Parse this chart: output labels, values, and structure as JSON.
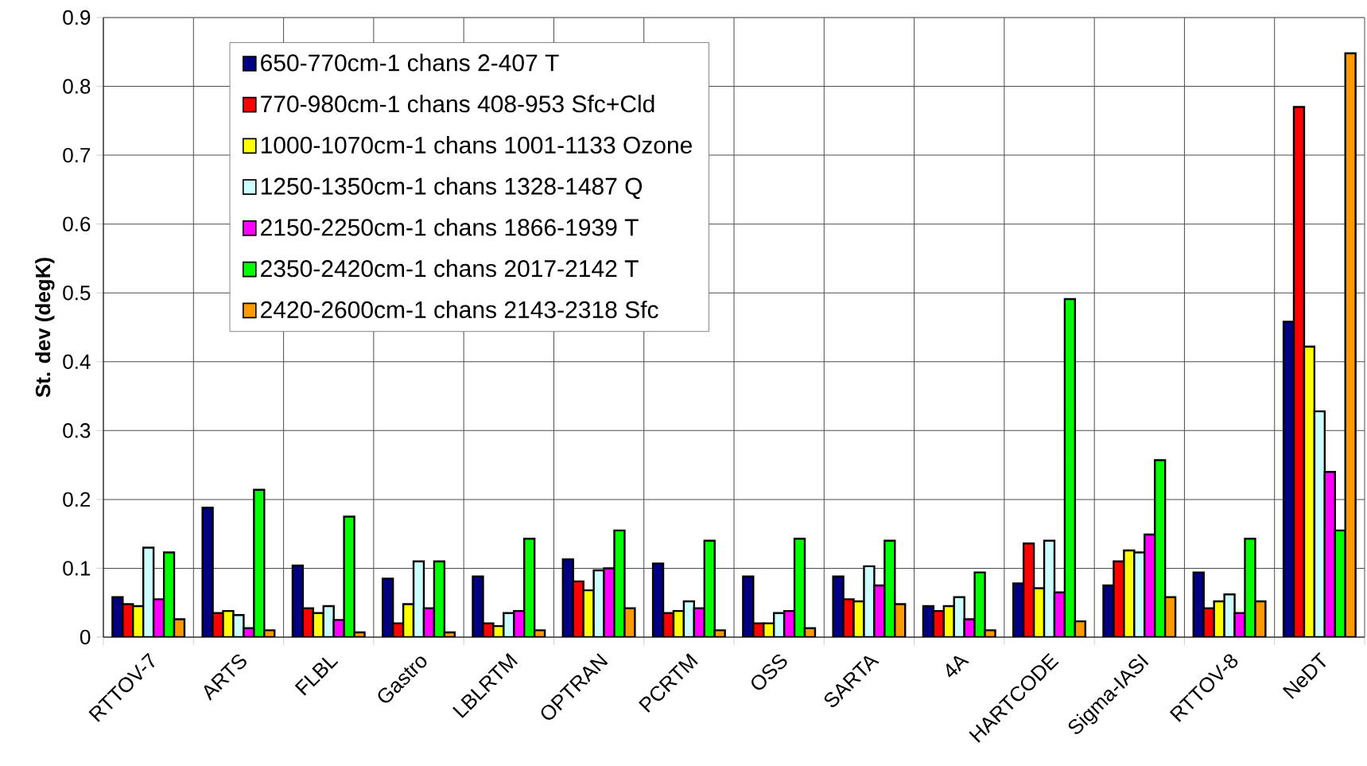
{
  "chart_data": {
    "type": "bar",
    "ylabel": "St. dev (degK)",
    "categories": [
      "RTTOV-7",
      "ARTS",
      "FLBL",
      "Gastro",
      "LBLRTM",
      "OPTRAN",
      "PCRTM",
      "OSS",
      "SARTA",
      "4A",
      "HARTCODE",
      "Sigma-IASI",
      "RTTOV-8",
      "NeDT"
    ],
    "series": [
      {
        "name": "650-770cm-1 chans 2-407 T",
        "color": "#000080",
        "values": [
          0.058,
          0.188,
          0.104,
          0.085,
          0.088,
          0.113,
          0.107,
          0.088,
          0.088,
          0.045,
          0.078,
          0.075,
          0.094,
          0.458
        ]
      },
      {
        "name": "770-980cm-1 chans 408-953 Sfc+Cld",
        "color": "#ff0000",
        "values": [
          0.048,
          0.035,
          0.042,
          0.02,
          0.02,
          0.081,
          0.035,
          0.02,
          0.055,
          0.038,
          0.136,
          0.11,
          0.042,
          0.77
        ]
      },
      {
        "name": "1000-1070cm-1 chans 1001-1133 Ozone",
        "color": "#ffff00",
        "values": [
          0.045,
          0.038,
          0.035,
          0.048,
          0.016,
          0.068,
          0.038,
          0.02,
          0.052,
          0.045,
          0.071,
          0.126,
          0.052,
          0.422
        ]
      },
      {
        "name": "1250-1350cm-1 chans 1328-1487 Q",
        "color": "#ccffff",
        "values": [
          0.13,
          0.032,
          0.045,
          0.11,
          0.035,
          0.097,
          0.052,
          0.035,
          0.103,
          0.058,
          0.14,
          0.123,
          0.062,
          0.328
        ]
      },
      {
        "name": "2150-2250cm-1 chans 1866-1939 T",
        "color": "#ff00ff",
        "values": [
          0.055,
          0.013,
          0.025,
          0.042,
          0.038,
          0.1,
          0.042,
          0.038,
          0.075,
          0.026,
          0.065,
          0.149,
          0.035,
          0.24
        ]
      },
      {
        "name": "2350-2420cm-1 chans 2017-2142 T",
        "color": "#00ff00",
        "values": [
          0.123,
          0.214,
          0.175,
          0.11,
          0.143,
          0.155,
          0.14,
          0.143,
          0.14,
          0.094,
          0.491,
          0.257,
          0.143,
          0.155
        ]
      },
      {
        "name": "2420-2600cm-1 chans 2143-2318 Sfc",
        "color": "#ff9900",
        "values": [
          0.026,
          0.01,
          0.007,
          0.007,
          0.01,
          0.042,
          0.01,
          0.013,
          0.048,
          0.01,
          0.023,
          0.058,
          0.052,
          0.848
        ]
      }
    ],
    "ylim": [
      0,
      0.9
    ],
    "yticks": [
      0,
      0.1,
      0.2,
      0.3,
      0.4,
      0.5,
      0.6,
      0.7,
      0.8,
      0.9
    ],
    "grid": true,
    "legend": "top"
  }
}
